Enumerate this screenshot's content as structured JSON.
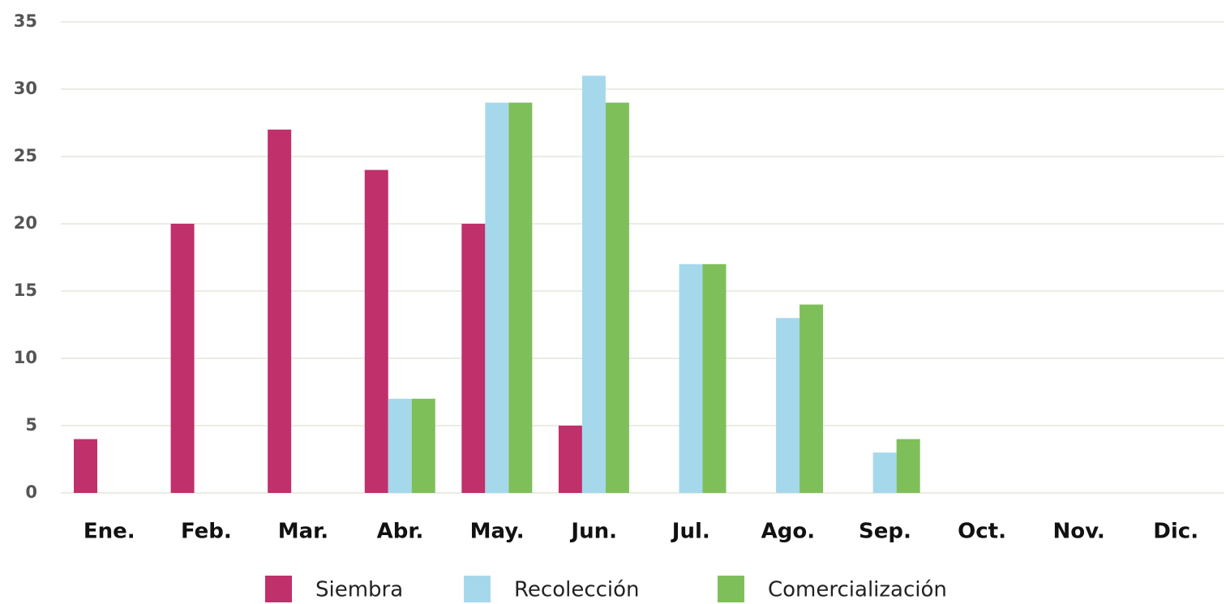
{
  "chart_data": {
    "type": "bar",
    "categories": [
      "Ene.",
      "Feb.",
      "Mar.",
      "Abr.",
      "May.",
      "Jun.",
      "Jul.",
      "Ago.",
      "Sep.",
      "Oct.",
      "Nov.",
      "Dic."
    ],
    "series": [
      {
        "name": "Siembra",
        "color": "#c0306b",
        "values": [
          4,
          20,
          27,
          24,
          20,
          5,
          0,
          0,
          0,
          0,
          0,
          0
        ]
      },
      {
        "name": "Recolección",
        "color": "#a6d8ec",
        "values": [
          0,
          0,
          0,
          7,
          29,
          31,
          17,
          13,
          3,
          0,
          0,
          0
        ]
      },
      {
        "name": "Comercialización",
        "color": "#7fbf5a",
        "values": [
          0,
          0,
          0,
          7,
          29,
          29,
          17,
          14,
          4,
          0,
          0,
          0
        ]
      }
    ],
    "ylim": [
      0,
      35
    ],
    "yticks": [
      0,
      5,
      10,
      15,
      20,
      25,
      30,
      35
    ],
    "grid": true
  }
}
